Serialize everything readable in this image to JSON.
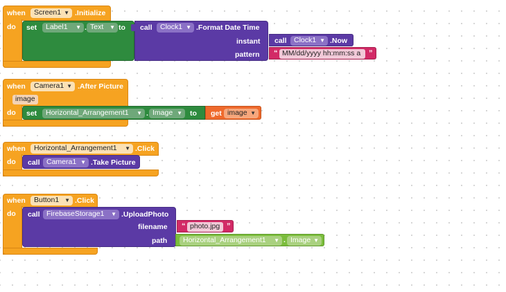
{
  "keywords": {
    "when": "when",
    "do": "do",
    "set": "set",
    "to": "to",
    "call": "call",
    "get": "get"
  },
  "block1": {
    "component": "Screen1",
    "event": ".Initialize",
    "set_component": "Label1",
    "set_property": "Text",
    "call_component": "Clock1",
    "call_method": ".Format Date Time",
    "arg_instant": "instant",
    "arg_pattern": "pattern",
    "inner_call_component": "Clock1",
    "inner_call_method": ".Now",
    "pattern_text": "MM/dd/yyyy hh:mm:ss a"
  },
  "block2": {
    "component": "Camera1",
    "event": ".After Picture",
    "param": "image",
    "set_component": "Horizontal_Arrangement1",
    "set_property": "Image",
    "get_var": "image"
  },
  "block3": {
    "component": "Horizontal_Arrangement1",
    "event": ".Click",
    "call_component": "Camera1",
    "call_method": ".Take Picture"
  },
  "block4": {
    "component": "Button1",
    "event": ".Click",
    "call_component": "FirebaseStorage1",
    "call_method": ".UploadPhoto",
    "arg_filename": "filename",
    "arg_path": "path",
    "filename_text": "photo.jpg",
    "path_component": "Horizontal_Arrangement1",
    "path_property": "Image"
  },
  "colors": {
    "event": "#f6a321",
    "setter": "#2e8b3e",
    "method": "#5b3aa5",
    "text": "#d22a66",
    "component_getter": "#7bbd3c",
    "variable_getter": "#ef6a2c"
  }
}
